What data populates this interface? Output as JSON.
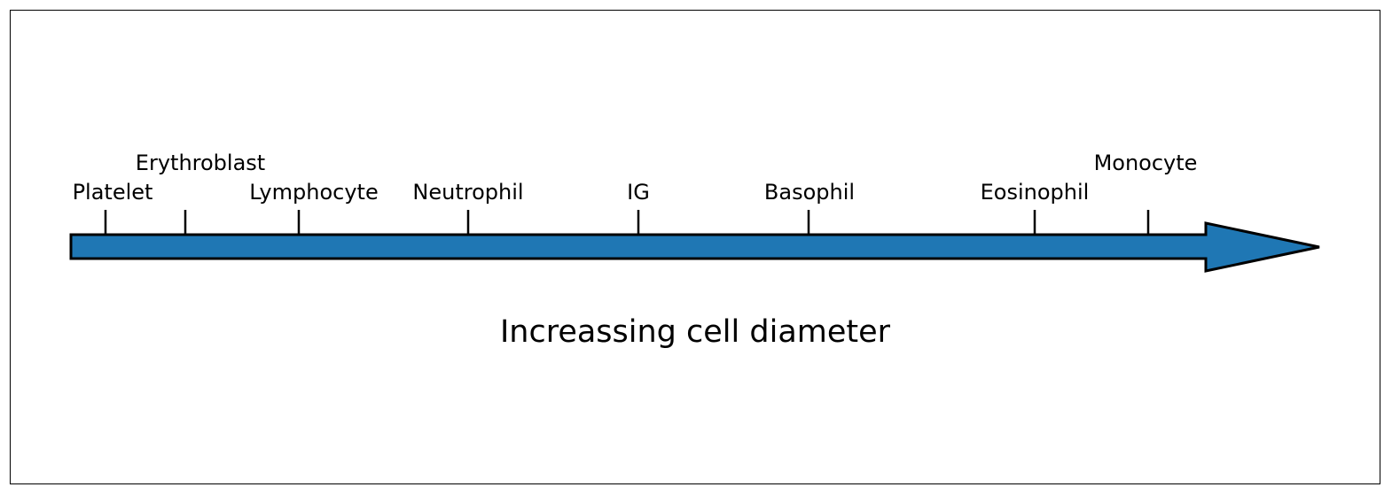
{
  "diagram": {
    "caption": "Increassing cell diameter",
    "arrow_color": "#1f77b4",
    "outline_color": "#000000",
    "cells": [
      {
        "label": "Platelet",
        "tier": "low"
      },
      {
        "label": "Erythroblast",
        "tier": "high"
      },
      {
        "label": "Lymphocyte",
        "tier": "low"
      },
      {
        "label": "Neutrophil",
        "tier": "low"
      },
      {
        "label": "IG",
        "tier": "low"
      },
      {
        "label": "Basophil",
        "tier": "low"
      },
      {
        "label": "Eosinophil",
        "tier": "low"
      },
      {
        "label": "Monocyte",
        "tier": "high"
      }
    ]
  }
}
